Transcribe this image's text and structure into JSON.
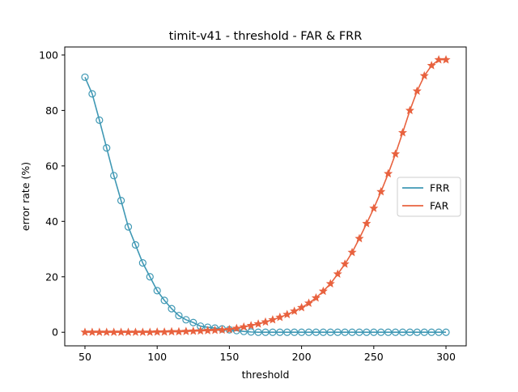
{
  "colors": {
    "frr": "#3f98b4",
    "far": "#e8623f"
  },
  "chart_data": {
    "type": "line",
    "title": "timit-v41 - threshold - FAR & FRR",
    "xlabel": "threshold",
    "ylabel": "error rate (%)",
    "xlim": [
      36,
      314
    ],
    "ylim": [
      -4.9,
      102.9
    ],
    "xticks": [
      50,
      100,
      150,
      200,
      250,
      300
    ],
    "yticks": [
      0,
      20,
      40,
      60,
      80,
      100
    ],
    "grid": false,
    "legend_position": "center-right",
    "x": [
      50,
      55,
      60,
      65,
      70,
      75,
      80,
      85,
      90,
      95,
      100,
      105,
      110,
      115,
      120,
      125,
      130,
      135,
      140,
      145,
      150,
      155,
      160,
      165,
      170,
      175,
      180,
      185,
      190,
      195,
      200,
      205,
      210,
      215,
      220,
      225,
      230,
      235,
      240,
      245,
      250,
      255,
      260,
      265,
      270,
      275,
      280,
      285,
      290,
      295,
      300
    ],
    "series": [
      {
        "name": "FRR",
        "marker": "circle-open",
        "color": "#3f98b4",
        "values": [
          92,
          86,
          76.5,
          66.5,
          56.5,
          47.5,
          38,
          31.5,
          25,
          20,
          15,
          11.5,
          8.5,
          6,
          4.5,
          3.5,
          2.2,
          1.8,
          1.5,
          1.2,
          0.9,
          0.6,
          0.3,
          0.1,
          0,
          0,
          0,
          0,
          0,
          0,
          0,
          0,
          0,
          0,
          0,
          0,
          0,
          0,
          0,
          0,
          0,
          0,
          0,
          0,
          0,
          0,
          0,
          0,
          0,
          0,
          0
        ]
      },
      {
        "name": "FAR",
        "marker": "star",
        "color": "#e8623f",
        "values": [
          0,
          0,
          0,
          0,
          0,
          0,
          0,
          0,
          0,
          0,
          0.1,
          0.1,
          0.2,
          0.2,
          0.3,
          0.4,
          0.5,
          0.6,
          0.7,
          0.8,
          1.0,
          1.4,
          1.9,
          2.4,
          3.0,
          3.7,
          4.5,
          5.4,
          6.4,
          7.6,
          8.9,
          10.5,
          12.4,
          14.8,
          17.5,
          21,
          24.6,
          28.8,
          33.8,
          39.2,
          44.7,
          50.7,
          57.2,
          64.3,
          72,
          80,
          87,
          92.5,
          96.2,
          98.3,
          98.3
        ]
      }
    ]
  }
}
